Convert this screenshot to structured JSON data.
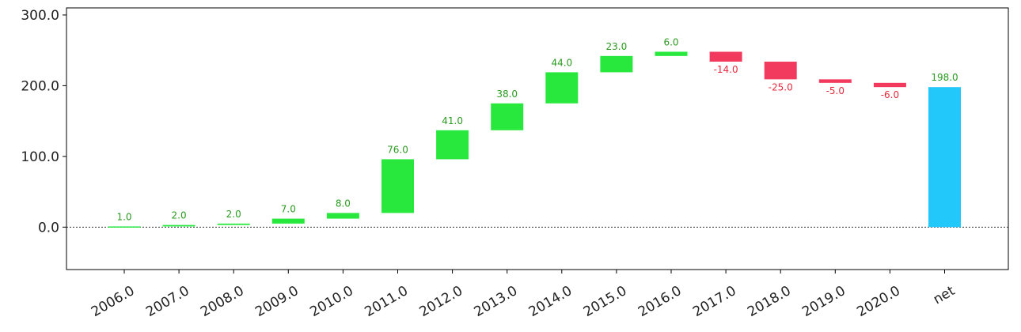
{
  "chart_data": {
    "type": "waterfall",
    "title": "",
    "xlabel": "",
    "ylabel": "",
    "categories": [
      "2006.0",
      "2007.0",
      "2008.0",
      "2009.0",
      "2010.0",
      "2011.0",
      "2012.0",
      "2013.0",
      "2014.0",
      "2015.0",
      "2016.0",
      "2017.0",
      "2018.0",
      "2019.0",
      "2020.0",
      "net"
    ],
    "values": [
      1.0,
      2.0,
      2.0,
      7.0,
      8.0,
      76.0,
      41.0,
      38.0,
      44.0,
      23.0,
      6.0,
      -14.0,
      -25.0,
      -5.0,
      -6.0,
      198.0
    ],
    "data_labels": [
      "1.0",
      "2.0",
      "2.0",
      "7.0",
      "8.0",
      "76.0",
      "41.0",
      "38.0",
      "44.0",
      "23.0",
      "6.0",
      "-14.0",
      "-25.0",
      "-5.0",
      "-6.0",
      "198.0"
    ],
    "ylim": [
      -60,
      310
    ],
    "yticks": [
      0,
      100,
      200,
      300
    ],
    "ytick_labels": [
      "0.0",
      "100.0",
      "200.0",
      "300.0"
    ],
    "zero_line": "dotted",
    "grid": false,
    "colors": {
      "increase": "#29e83d",
      "decrease": "#f23a5e",
      "total": "#22c8fa",
      "increase_label": "#2a9a20",
      "decrease_label": "#e8283c",
      "total_label": "#2a9a20"
    }
  }
}
